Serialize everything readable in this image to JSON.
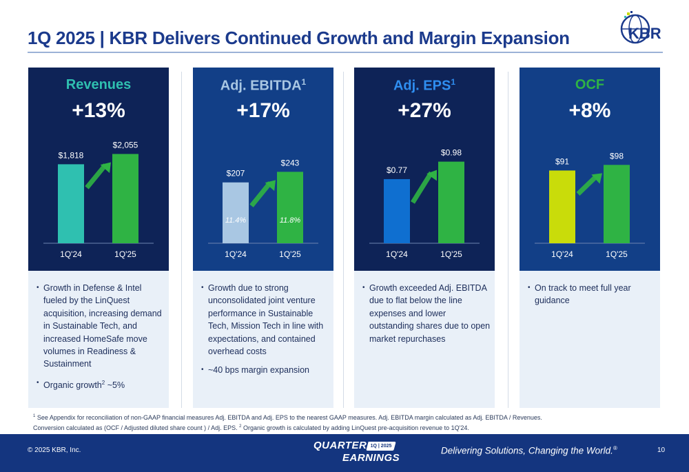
{
  "title": "1Q 2025 | KBR Delivers Continued Growth and Margin Expansion",
  "logo": {
    "text": "KBR"
  },
  "colors": {
    "navy": "#0e2357",
    "blue_card": "#123f87",
    "green": "#2fb344",
    "teal": "#2fc0b0",
    "lightblue": "#a9c7e3",
    "medblue": "#0f6fd0",
    "lime": "#c9dc0a",
    "title": "#1b3a8c"
  },
  "chart_data": [
    {
      "type": "bar",
      "metric": "Revenues",
      "metric_sup": "",
      "growth": "+13%",
      "categories": [
        "1Q'24",
        "1Q'25"
      ],
      "values": [
        1818,
        2055
      ],
      "value_labels": [
        "$1,818",
        "$2,055"
      ],
      "ylim": [
        0,
        2300
      ],
      "bar_colors": [
        "#2fc0b0",
        "#2fb344"
      ],
      "metric_color": "#2fc0b0",
      "bg": "#0e2357"
    },
    {
      "type": "bar",
      "metric": "Adj. EBITDA",
      "metric_sup": "1",
      "growth": "+17%",
      "categories": [
        "1Q'24",
        "1Q'25"
      ],
      "values": [
        207,
        243
      ],
      "value_labels": [
        "$207",
        "$243"
      ],
      "inner_labels": [
        "11.4%",
        "11.8%"
      ],
      "ylim": [
        0,
        340
      ],
      "bar_colors": [
        "#a9c7e3",
        "#2fb344"
      ],
      "metric_color": "#a9c7e3",
      "bg": "#123f87"
    },
    {
      "type": "bar",
      "metric": "Adj. EPS",
      "metric_sup": "1",
      "growth": "+27%",
      "categories": [
        "1Q'24",
        "1Q'25"
      ],
      "values": [
        0.77,
        0.98
      ],
      "value_labels": [
        "$0.77",
        "$0.98"
      ],
      "ylim": [
        0,
        1.2
      ],
      "bar_colors": [
        "#0f6fd0",
        "#2fb344"
      ],
      "metric_color": "#2f8ef0",
      "bg": "#0e2357"
    },
    {
      "type": "bar",
      "metric": "OCF",
      "metric_sup": "",
      "growth": "+8%",
      "categories": [
        "1Q'24",
        "1Q'25"
      ],
      "values": [
        91,
        98
      ],
      "value_labels": [
        "$91",
        "$98"
      ],
      "ylim": [
        0,
        125
      ],
      "bar_colors": [
        "#c9dc0a",
        "#2fb344"
      ],
      "metric_color": "#2fb344",
      "bg": "#123f87"
    }
  ],
  "bullets": [
    [
      {
        "text": "Growth in Defense & Intel fueled by the LinQuest acquisition, increasing demand in Sustainable Tech, and increased HomeSafe move volumes in Readiness & Sustainment",
        "sup": "",
        "tail": ""
      },
      {
        "text": "Organic growth",
        "sup": "2",
        "tail": " ~5%"
      }
    ],
    [
      {
        "text": "Growth due to strong unconsolidated joint venture performance in Sustainable Tech, Mission Tech in line with expectations, and contained overhead costs",
        "sup": "",
        "tail": ""
      },
      {
        "text": "~40 bps margin expansion",
        "sup": "",
        "tail": ""
      }
    ],
    [
      {
        "text": "Growth exceeded Adj. EBITDA due to flat below the line expenses and lower outstanding shares due to open market repurchases",
        "sup": "",
        "tail": ""
      }
    ],
    [
      {
        "text": "On track to meet full year guidance",
        "sup": "",
        "tail": ""
      }
    ]
  ],
  "footnote": {
    "sup1": "1",
    "line1": " See Appendix for reconciliation of non-GAAP financial measures Adj. EBITDA and Adj. EPS to the nearest GAAP measures. Adj. EBITDA margin calculated as Adj. EBITDA / Revenues.",
    "line2a": "Conversion calculated as (OCF / Adjusted diluted share count ) / Adj. EPS. ",
    "sup2": "2",
    "line2b": " Organic growth is calculated by adding LinQuest pre-acquisition revenue to 1Q'24."
  },
  "footer": {
    "copyright": "© 2025 KBR, Inc.",
    "badge_line1": "QUARTERLY",
    "badge_pill": "1Q | 2025",
    "badge_line2": "EARNINGS",
    "tagline": "Delivering Solutions, Changing the World.",
    "tagline_mark": "®",
    "page_number": "10"
  }
}
